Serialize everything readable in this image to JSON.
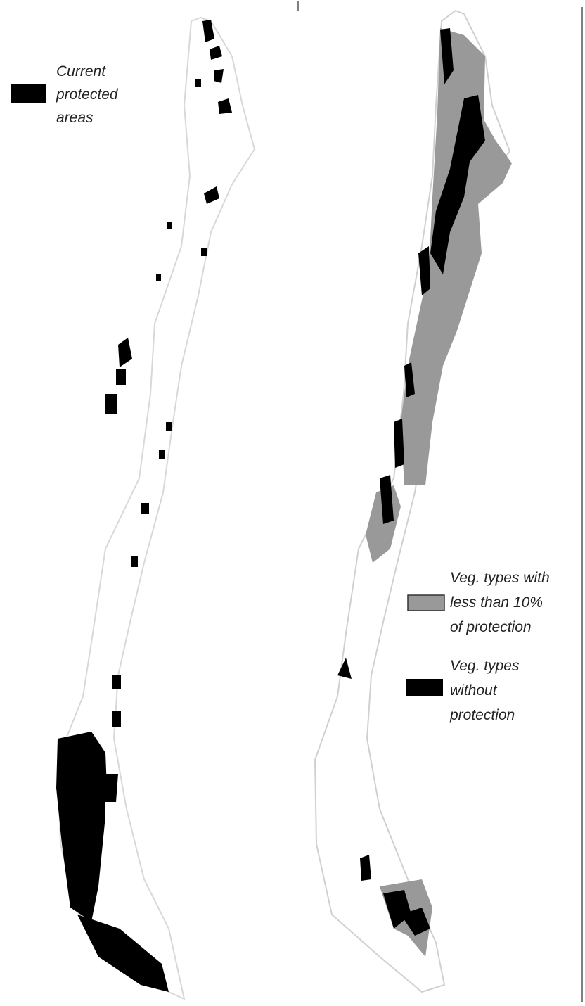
{
  "left_map": {
    "legend": {
      "label_lines": [
        "Current",
        "protected",
        "areas"
      ]
    }
  },
  "right_map": {
    "legend": [
      {
        "label_lines": [
          "Veg. types with",
          "less than 10%",
          "of protection"
        ]
      },
      {
        "label_lines": [
          "Veg. types",
          "without",
          "protection"
        ]
      }
    ]
  }
}
